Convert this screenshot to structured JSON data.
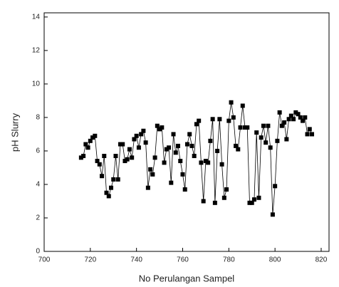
{
  "chart_data": {
    "type": "line",
    "x_label": "No Perulangan Sampel",
    "y_label": "pH Slurry",
    "x": [
      716,
      717,
      718,
      719,
      720,
      721,
      722,
      723,
      724,
      725,
      726,
      727,
      728,
      729,
      730,
      731,
      732,
      733,
      734,
      735,
      736,
      737,
      738,
      739,
      740,
      741,
      742,
      743,
      744,
      745,
      746,
      747,
      748,
      749,
      750,
      751,
      752,
      753,
      754,
      755,
      756,
      757,
      758,
      759,
      760,
      761,
      762,
      763,
      764,
      765,
      766,
      767,
      768,
      769,
      770,
      771,
      772,
      773,
      774,
      775,
      776,
      777,
      778,
      779,
      780,
      781,
      782,
      783,
      784,
      785,
      786,
      787,
      788,
      789,
      790,
      791,
      792,
      793,
      794,
      795,
      796,
      797,
      798,
      799,
      800,
      801,
      802,
      803,
      804,
      805,
      806,
      807,
      808,
      809,
      810,
      811,
      812,
      813,
      814,
      815,
      816
    ],
    "series": [
      {
        "color": "#000000",
        "values": [
          5.6,
          5.7,
          6.4,
          6.2,
          6.6,
          6.8,
          6.9,
          5.4,
          5.2,
          4.5,
          5.7,
          3.5,
          3.3,
          3.8,
          4.3,
          5.7,
          4.3,
          6.4,
          6.4,
          5.4,
          5.5,
          6.1,
          5.6,
          6.7,
          6.9,
          6.2,
          7.0,
          7.2,
          6.5,
          3.8,
          4.9,
          4.6,
          5.6,
          7.5,
          7.3,
          7.4,
          5.3,
          6.1,
          6.2,
          4.1,
          7.0,
          5.9,
          6.3,
          5.4,
          4.6,
          3.7,
          6.4,
          7.0,
          6.3,
          5.7,
          7.6,
          7.8,
          5.3,
          3.0,
          5.4,
          5.3,
          6.6,
          7.9,
          2.9,
          6.0,
          7.9,
          5.2,
          3.2,
          3.7,
          7.8,
          8.9,
          8.0,
          6.3,
          6.1,
          7.4,
          8.7,
          7.4,
          7.4,
          2.9,
          2.9,
          3.1,
          7.1,
          3.2,
          6.8,
          7.5,
          6.5,
          7.5,
          6.2,
          2.2,
          3.9,
          6.6,
          8.3,
          7.5,
          7.7,
          6.7,
          7.9,
          8.1,
          7.9,
          8.3,
          8.2,
          8.0,
          7.8,
          8.0,
          7.0,
          7.3,
          7.0
        ]
      }
    ],
    "xlim": [
      700,
      823.4
    ],
    "ylim": [
      0,
      14.25
    ],
    "xticks": [
      700,
      720,
      740,
      760,
      780,
      800,
      820
    ],
    "yticks": [
      0,
      2,
      4,
      6,
      8,
      10,
      12,
      14
    ]
  }
}
